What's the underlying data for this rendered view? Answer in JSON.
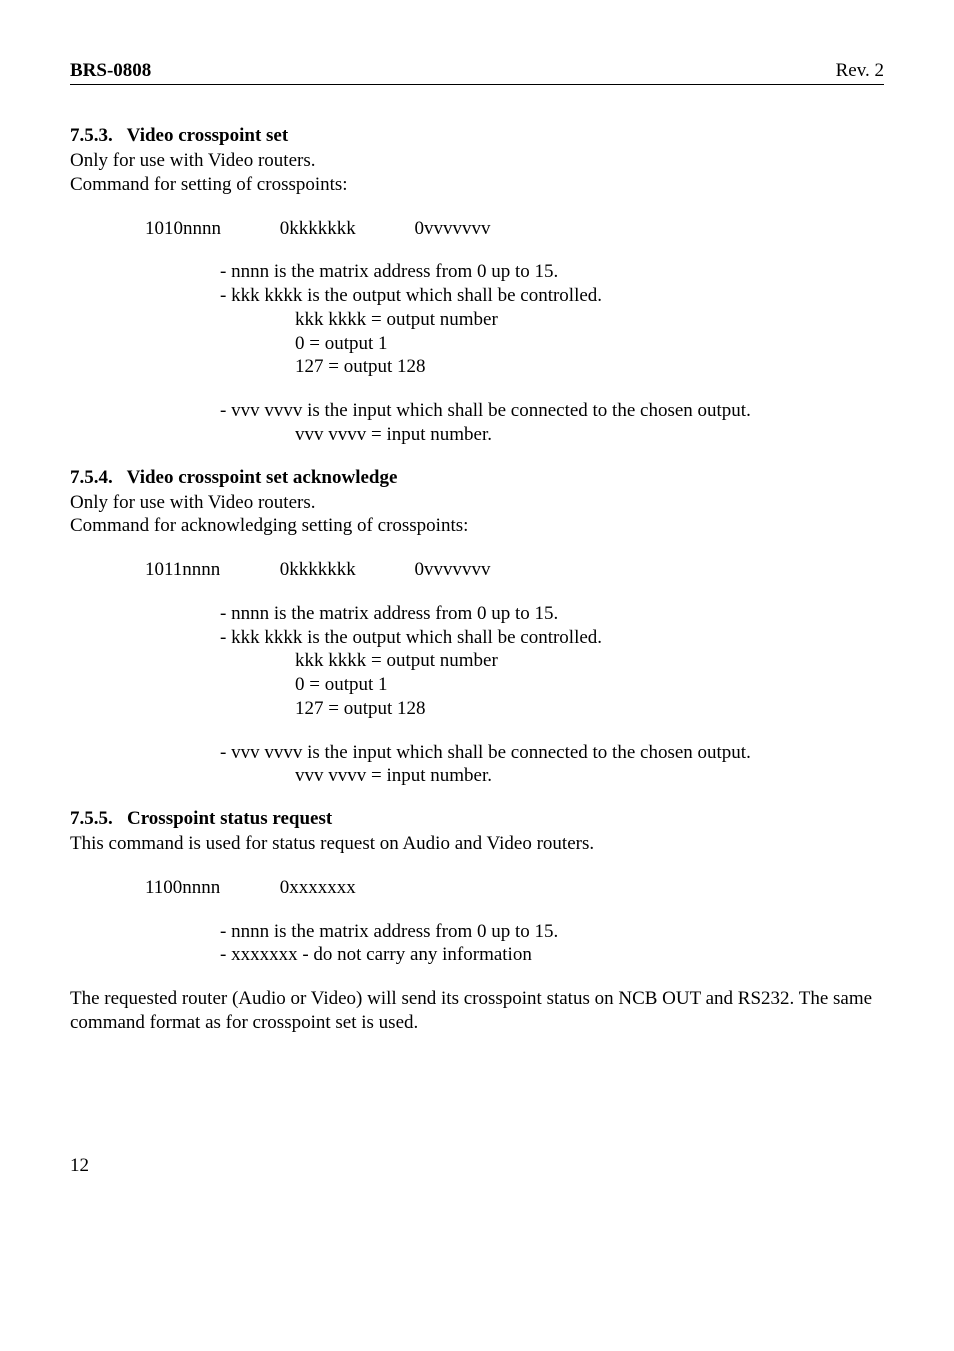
{
  "header": {
    "left": "BRS-0808",
    "right": "Rev. 2"
  },
  "s753": {
    "number": "7.5.3.",
    "title": "Video crosspoint set",
    "line1": "Only for use with Video routers.",
    "line2": "Command for setting of crosspoints:",
    "cmd_a": "1010nnnn",
    "cmd_b": "0kkkkkkk",
    "cmd_c": "0vvvvvvv",
    "note_nnnn": "- nnnn is the matrix address from 0 up to 15.",
    "note_kkk": "- kkk kkkk is the output which shall be controlled.",
    "kkk_out": "kkk kkkk = output number",
    "out0": "0 = output 1",
    "out127": "127 = output 128",
    "note_vvv": "- vvv vvvv is the input which shall be connected to the chosen output.",
    "vvv_in": "vvv vvvv = input number."
  },
  "s754": {
    "number": "7.5.4.",
    "title": "Video crosspoint set acknowledge",
    "line1": "Only for use with Video routers.",
    "line2": "Command for acknowledging setting of crosspoints:",
    "cmd_a": "1011nnnn",
    "cmd_b": "0kkkkkkk",
    "cmd_c": "0vvvvvvv",
    "note_nnnn": "- nnnn is the matrix address from 0 up to 15.",
    "note_kkk": "- kkk kkkk is the output which shall be controlled.",
    "kkk_out": "kkk kkkk = output number",
    "out0": "0 = output 1",
    "out127": "127 = output 128",
    "note_vvv": "- vvv vvvv is the input which shall be connected to the chosen output.",
    "vvv_in": "vvv vvvv = input number."
  },
  "s755": {
    "number": "7.5.5.",
    "title": "Crosspoint status request",
    "line1": "This command is used for status request on Audio and Video routers.",
    "cmd_a": "1100nnnn",
    "cmd_b": "0xxxxxxx",
    "note_nnnn": "- nnnn is the matrix address from 0 up to 15.",
    "note_xxx": "- xxxxxxx - do not carry any information",
    "closing": "The requested router (Audio or Video) will send its crosspoint status on NCB OUT and RS232. The same command format as for crosspoint set is used."
  },
  "footer": {
    "page": "12"
  }
}
